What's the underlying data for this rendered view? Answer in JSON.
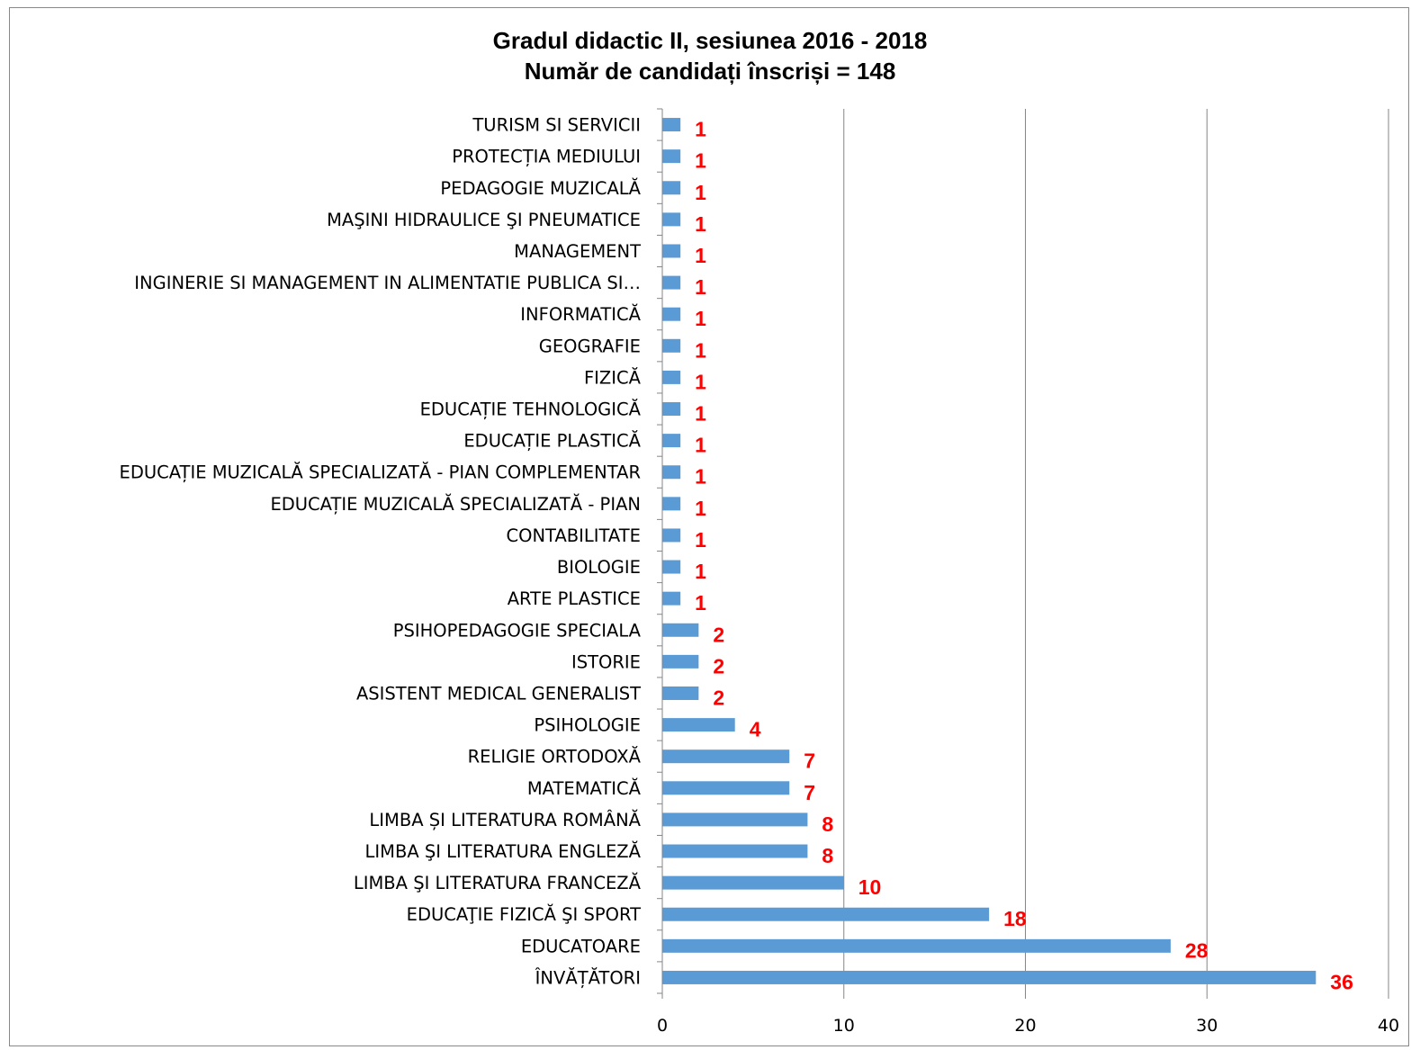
{
  "chart_data": {
    "type": "bar",
    "orientation": "horizontal",
    "title_line1": "Gradul didactic II, sesiunea 2016 - 2018",
    "title_line2": "Număr de candidați înscriși = 148",
    "categories": [
      "ÎNVĂȚĂTORI",
      "EDUCATOARE",
      "EDUCAŢIE FIZICĂ ŞI SPORT",
      "LIMBA ŞI LITERATURA FRANCEZĂ",
      "LIMBA ŞI LITERATURA ENGLEZĂ",
      "LIMBA ȘI LITERATURA ROMÂNĂ",
      "MATEMATICĂ",
      "RELIGIE ORTODOXĂ",
      "PSIHOLOGIE",
      "ASISTENT MEDICAL GENERALIST",
      "ISTORIE",
      "PSIHOPEDAGOGIE SPECIALA",
      "ARTE PLASTICE",
      "BIOLOGIE",
      "CONTABILITATE",
      "EDUCAȚIE MUZICALĂ SPECIALIZATĂ - PIAN",
      "EDUCAȚIE MUZICALĂ SPECIALIZATĂ - PIAN COMPLEMENTAR",
      "EDUCAȚIE PLASTICĂ",
      "EDUCAȚIE TEHNOLOGICĂ",
      "FIZICĂ",
      "GEOGRAFIE",
      "INFORMATICĂ",
      "INGINERIE SI MANAGEMENT IN ALIMENTATIE PUBLICA SI…",
      "MANAGEMENT",
      "MAŞINI HIDRAULICE ŞI PNEUMATICE",
      "PEDAGOGIE MUZICALĂ",
      "PROTECȚIA MEDIULUI",
      "TURISM SI SERVICII"
    ],
    "values": [
      36,
      28,
      18,
      10,
      8,
      8,
      7,
      7,
      4,
      2,
      2,
      2,
      1,
      1,
      1,
      1,
      1,
      1,
      1,
      1,
      1,
      1,
      1,
      1,
      1,
      1,
      1,
      1
    ],
    "xlim": [
      0,
      40
    ],
    "xticks": [
      0,
      10,
      20,
      30,
      40
    ],
    "grid": true,
    "legend": "none",
    "bar_color": "#5B9BD5",
    "label_color": "#FF0000",
    "gridline_color": "#868686"
  }
}
